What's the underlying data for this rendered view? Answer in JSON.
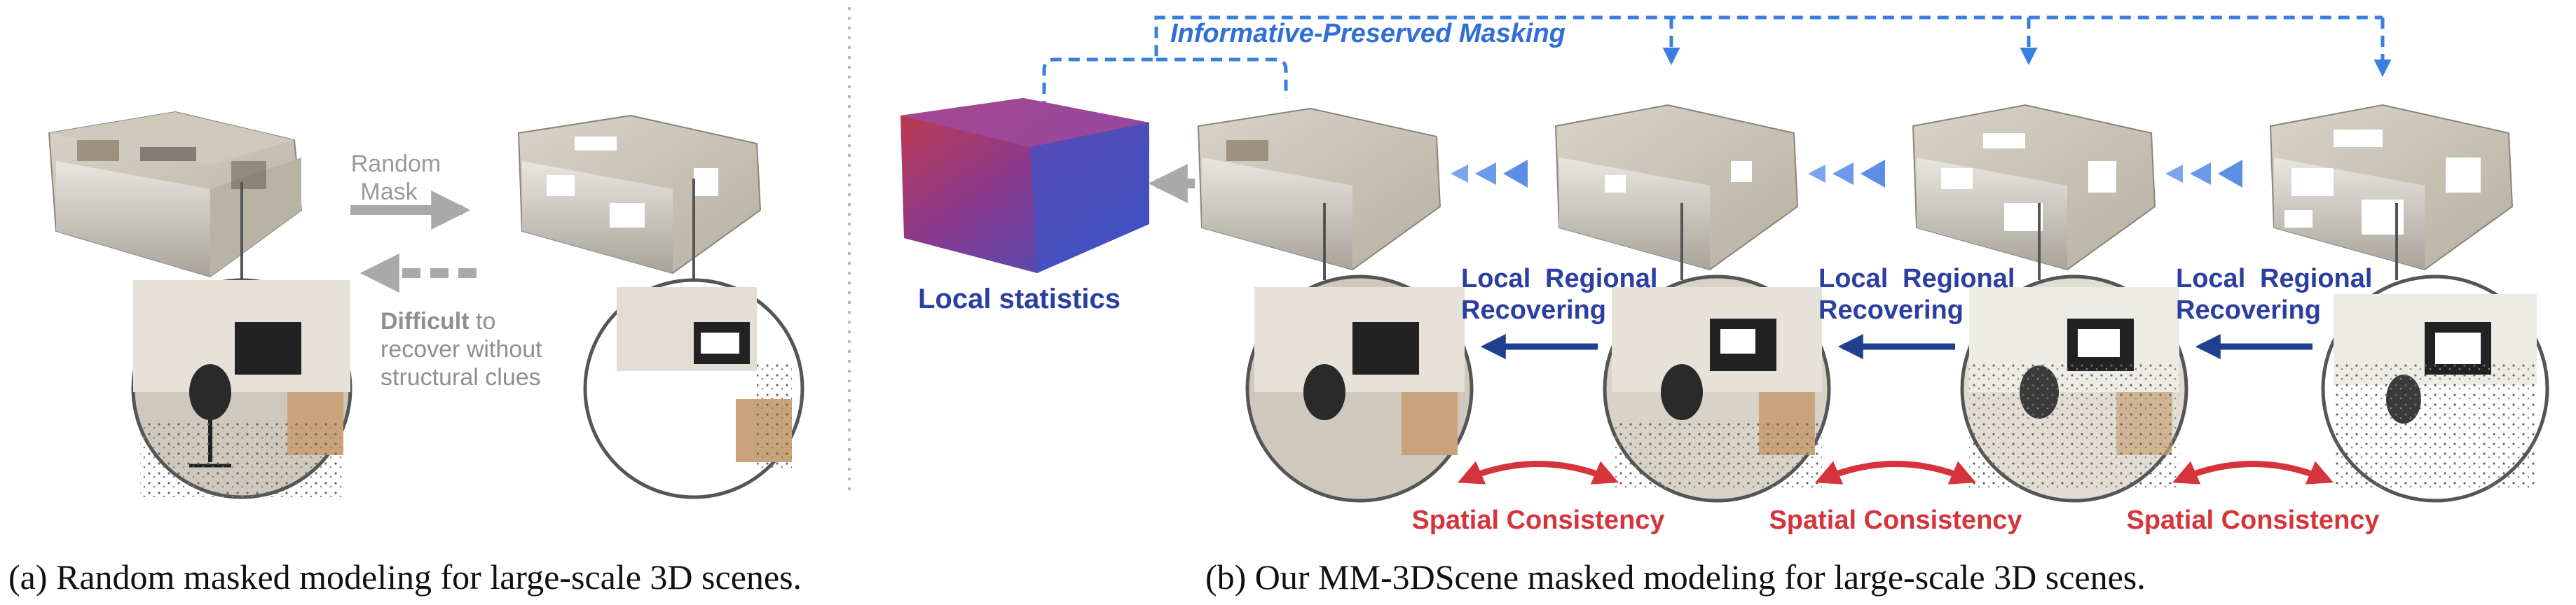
{
  "left_panel": {
    "arrow_label_line1": "Random",
    "arrow_label_line2": "Mask",
    "back_label_bold": "Difficult",
    "back_label_rest": " to",
    "back_label_line2": "recover without",
    "back_label_line3": "structural clues",
    "caption": "(a) Random masked modeling for large-scale 3D scenes."
  },
  "right_panel": {
    "masking_title": "Informative-Preserved Masking",
    "local_statistics": "Local statistics",
    "recover_labels": [
      {
        "line1a": "Local",
        "line1b": "Regional",
        "line2": "Recovering"
      },
      {
        "line1a": "Local",
        "line1b": "Regional",
        "line2": "Recovering"
      },
      {
        "line1a": "Local",
        "line1b": "Regional",
        "line2": "Recovering"
      }
    ],
    "consistency_labels": [
      "Spatial Consistency",
      "Spatial Consistency",
      "Spatial Consistency"
    ],
    "caption": "(b) Our MM-3DScene masked modeling for large-scale 3D scenes."
  },
  "colors": {
    "gray_arrow": "#a9a9a9",
    "blue_dashed": "#3a7fe0",
    "navy_arrow": "#1f3f8f",
    "red_arc": "#d6343b",
    "chevron": "#5b8fe6"
  }
}
